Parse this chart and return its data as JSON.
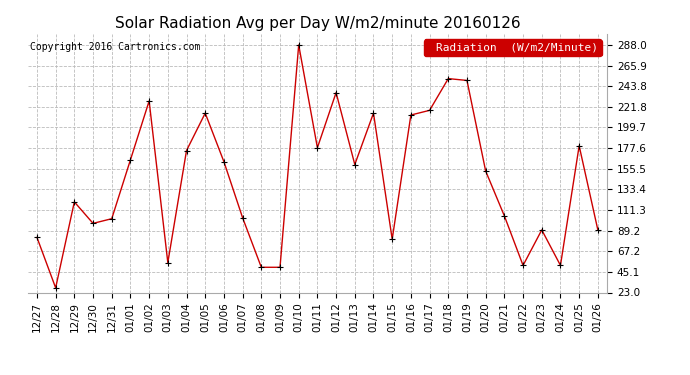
{
  "title": "Solar Radiation Avg per Day W/m2/minute 20160126",
  "copyright": "Copyright 2016 Cartronics.com",
  "legend_label": "Radiation  (W/m2/Minute)",
  "dates": [
    "12/27",
    "12/28",
    "12/29",
    "12/30",
    "12/31",
    "01/01",
    "01/02",
    "01/03",
    "01/04",
    "01/05",
    "01/06",
    "01/07",
    "01/08",
    "01/09",
    "01/10",
    "01/11",
    "01/12",
    "01/13",
    "01/14",
    "01/15",
    "01/16",
    "01/17",
    "01/18",
    "01/19",
    "01/20",
    "01/21",
    "01/22",
    "01/23",
    "01/24",
    "01/25",
    "01/26"
  ],
  "values": [
    82,
    28,
    120,
    97,
    102,
    165,
    228,
    55,
    175,
    215,
    163,
    103,
    50,
    50,
    288,
    178,
    237,
    160,
    215,
    80,
    213,
    218,
    252,
    250,
    153,
    105,
    52,
    90,
    52,
    180,
    90
  ],
  "line_color": "#cc0000",
  "marker_color": "#000000",
  "bg_color": "#ffffff",
  "grid_color": "#bbbbbb",
  "legend_bg": "#cc0000",
  "legend_text_color": "#ffffff",
  "yticks": [
    23.0,
    45.1,
    67.2,
    89.2,
    111.3,
    133.4,
    155.5,
    177.6,
    199.7,
    221.8,
    243.8,
    265.9,
    288.0
  ],
  "ylim": [
    23.0,
    300.0
  ],
  "title_fontsize": 11,
  "copyright_fontsize": 7,
  "legend_fontsize": 8,
  "tick_fontsize": 7.5
}
